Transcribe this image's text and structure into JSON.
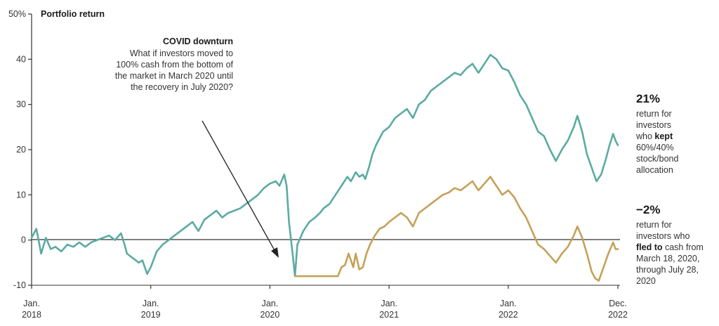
{
  "chart_data": {
    "type": "line",
    "title": "Portfolio return",
    "ylabel": "",
    "xlabel": "",
    "ylim": [
      -10,
      50
    ],
    "xlim": [
      2018.0,
      2022.92
    ],
    "yticks": [
      {
        "value": 50,
        "label": "50%"
      },
      {
        "value": 40,
        "label": "40"
      },
      {
        "value": 30,
        "label": "30"
      },
      {
        "value": 20,
        "label": "20"
      },
      {
        "value": 10,
        "label": "10"
      },
      {
        "value": 0,
        "label": "0"
      },
      {
        "value": -10,
        "label": "-10"
      }
    ],
    "xticks": [
      {
        "value": 2018.0,
        "line1": "Jan.",
        "line2": "2018"
      },
      {
        "value": 2019.0,
        "line1": "Jan.",
        "line2": "2019"
      },
      {
        "value": 2020.0,
        "line1": "Jan.",
        "line2": "2020"
      },
      {
        "value": 2021.0,
        "line1": "Jan.",
        "line2": "2021"
      },
      {
        "value": 2022.0,
        "line1": "Jan.",
        "line2": "2022"
      },
      {
        "value": 2022.92,
        "line1": "Dec.",
        "line2": "2022"
      }
    ],
    "grid": false,
    "series": [
      {
        "name": "kept 60%/40% stock/bond allocation",
        "color": "#5aaba3",
        "points": [
          [
            2018.0,
            0.5
          ],
          [
            2018.04,
            2.5
          ],
          [
            2018.08,
            -3.0
          ],
          [
            2018.12,
            0.5
          ],
          [
            2018.16,
            -2.0
          ],
          [
            2018.2,
            -1.5
          ],
          [
            2018.25,
            -2.5
          ],
          [
            2018.3,
            -1.0
          ],
          [
            2018.35,
            -1.5
          ],
          [
            2018.4,
            -0.5
          ],
          [
            2018.45,
            -1.5
          ],
          [
            2018.5,
            -0.5
          ],
          [
            2018.55,
            0.0
          ],
          [
            2018.6,
            0.5
          ],
          [
            2018.65,
            1.0
          ],
          [
            2018.7,
            0.0
          ],
          [
            2018.75,
            1.5
          ],
          [
            2018.78,
            -1.0
          ],
          [
            2018.8,
            -3.0
          ],
          [
            2018.85,
            -4.0
          ],
          [
            2018.9,
            -5.0
          ],
          [
            2018.93,
            -4.5
          ],
          [
            2018.97,
            -7.5
          ],
          [
            2019.0,
            -6.0
          ],
          [
            2019.05,
            -2.5
          ],
          [
            2019.1,
            -1.0
          ],
          [
            2019.15,
            0.0
          ],
          [
            2019.2,
            1.0
          ],
          [
            2019.25,
            2.0
          ],
          [
            2019.3,
            3.0
          ],
          [
            2019.35,
            4.0
          ],
          [
            2019.4,
            2.0
          ],
          [
            2019.45,
            4.5
          ],
          [
            2019.5,
            5.5
          ],
          [
            2019.55,
            6.5
          ],
          [
            2019.6,
            5.0
          ],
          [
            2019.65,
            6.0
          ],
          [
            2019.7,
            6.5
          ],
          [
            2019.75,
            7.0
          ],
          [
            2019.8,
            8.0
          ],
          [
            2019.85,
            9.0
          ],
          [
            2019.9,
            10.0
          ],
          [
            2019.95,
            11.5
          ],
          [
            2020.0,
            12.5
          ],
          [
            2020.05,
            13.0
          ],
          [
            2020.08,
            12.0
          ],
          [
            2020.12,
            14.5
          ],
          [
            2020.14,
            12.0
          ],
          [
            2020.16,
            4.0
          ],
          [
            2020.19,
            -3.0
          ],
          [
            2020.21,
            -8.0
          ],
          [
            2020.23,
            -1.0
          ],
          [
            2020.28,
            2.0
          ],
          [
            2020.33,
            4.0
          ],
          [
            2020.38,
            5.0
          ],
          [
            2020.42,
            6.0
          ],
          [
            2020.45,
            7.0
          ],
          [
            2020.5,
            8.0
          ],
          [
            2020.55,
            10.0
          ],
          [
            2020.6,
            12.0
          ],
          [
            2020.65,
            14.0
          ],
          [
            2020.68,
            13.0
          ],
          [
            2020.72,
            15.0
          ],
          [
            2020.75,
            14.0
          ],
          [
            2020.78,
            14.5
          ],
          [
            2020.8,
            13.5
          ],
          [
            2020.83,
            16.0
          ],
          [
            2020.86,
            19.0
          ],
          [
            2020.89,
            21.0
          ],
          [
            2020.92,
            22.5
          ],
          [
            2020.95,
            24.0
          ],
          [
            2021.0,
            25.0
          ],
          [
            2021.05,
            27.0
          ],
          [
            2021.1,
            28.0
          ],
          [
            2021.15,
            29.0
          ],
          [
            2021.2,
            27.0
          ],
          [
            2021.25,
            30.0
          ],
          [
            2021.3,
            31.0
          ],
          [
            2021.35,
            33.0
          ],
          [
            2021.4,
            34.0
          ],
          [
            2021.45,
            35.0
          ],
          [
            2021.5,
            36.0
          ],
          [
            2021.55,
            37.0
          ],
          [
            2021.6,
            36.5
          ],
          [
            2021.65,
            38.0
          ],
          [
            2021.7,
            39.0
          ],
          [
            2021.75,
            37.0
          ],
          [
            2021.8,
            39.0
          ],
          [
            2021.85,
            41.0
          ],
          [
            2021.9,
            40.0
          ],
          [
            2021.95,
            38.0
          ],
          [
            2022.0,
            37.5
          ],
          [
            2022.05,
            35.0
          ],
          [
            2022.1,
            32.0
          ],
          [
            2022.15,
            30.0
          ],
          [
            2022.2,
            27.0
          ],
          [
            2022.25,
            24.0
          ],
          [
            2022.3,
            23.0
          ],
          [
            2022.35,
            20.0
          ],
          [
            2022.4,
            17.5
          ],
          [
            2022.45,
            20.0
          ],
          [
            2022.5,
            22.0
          ],
          [
            2022.55,
            25.0
          ],
          [
            2022.58,
            27.5
          ],
          [
            2022.62,
            24.0
          ],
          [
            2022.66,
            19.0
          ],
          [
            2022.7,
            16.0
          ],
          [
            2022.74,
            13.0
          ],
          [
            2022.78,
            14.5
          ],
          [
            2022.82,
            18.0
          ],
          [
            2022.85,
            21.0
          ],
          [
            2022.88,
            23.5
          ],
          [
            2022.9,
            22.0
          ],
          [
            2022.92,
            21.0
          ]
        ]
      },
      {
        "name": "fled to cash from March 18, 2020, through July 28, 2020",
        "color": "#c4a157",
        "points": [
          [
            2020.21,
            -8.0
          ],
          [
            2020.3,
            -8.0
          ],
          [
            2020.4,
            -8.0
          ],
          [
            2020.5,
            -8.0
          ],
          [
            2020.57,
            -8.0
          ],
          [
            2020.6,
            -6.0
          ],
          [
            2020.63,
            -5.5
          ],
          [
            2020.66,
            -3.0
          ],
          [
            2020.7,
            -6.0
          ],
          [
            2020.72,
            -3.0
          ],
          [
            2020.75,
            -6.5
          ],
          [
            2020.78,
            -6.0
          ],
          [
            2020.81,
            -3.0
          ],
          [
            2020.84,
            -1.0
          ],
          [
            2020.88,
            1.0
          ],
          [
            2020.92,
            2.5
          ],
          [
            2020.96,
            3.0
          ],
          [
            2021.0,
            4.0
          ],
          [
            2021.05,
            5.0
          ],
          [
            2021.1,
            6.0
          ],
          [
            2021.15,
            5.0
          ],
          [
            2021.2,
            3.0
          ],
          [
            2021.25,
            6.0
          ],
          [
            2021.3,
            7.0
          ],
          [
            2021.35,
            8.0
          ],
          [
            2021.4,
            9.0
          ],
          [
            2021.45,
            10.0
          ],
          [
            2021.5,
            10.5
          ],
          [
            2021.55,
            11.5
          ],
          [
            2021.6,
            11.0
          ],
          [
            2021.65,
            12.0
          ],
          [
            2021.7,
            13.0
          ],
          [
            2021.75,
            11.0
          ],
          [
            2021.8,
            12.5
          ],
          [
            2021.85,
            14.0
          ],
          [
            2021.9,
            12.0
          ],
          [
            2021.95,
            10.0
          ],
          [
            2022.0,
            11.0
          ],
          [
            2022.05,
            9.5
          ],
          [
            2022.1,
            7.0
          ],
          [
            2022.15,
            5.0
          ],
          [
            2022.2,
            2.0
          ],
          [
            2022.25,
            -1.0
          ],
          [
            2022.3,
            -2.0
          ],
          [
            2022.35,
            -3.5
          ],
          [
            2022.4,
            -5.0
          ],
          [
            2022.45,
            -3.0
          ],
          [
            2022.5,
            -1.5
          ],
          [
            2022.55,
            1.0
          ],
          [
            2022.58,
            3.0
          ],
          [
            2022.62,
            0.5
          ],
          [
            2022.66,
            -3.0
          ],
          [
            2022.7,
            -7.0
          ],
          [
            2022.73,
            -8.5
          ],
          [
            2022.76,
            -9.0
          ],
          [
            2022.8,
            -6.0
          ],
          [
            2022.84,
            -3.0
          ],
          [
            2022.88,
            -0.5
          ],
          [
            2022.9,
            -2.0
          ],
          [
            2022.92,
            -2.0
          ]
        ]
      }
    ],
    "annotations": {
      "covid_title": "COVID downturn",
      "covid_lines": [
        "What if investors moved to",
        "100% cash from the bottom of",
        "the market in March 2020 until",
        "the recovery in July  2020?"
      ],
      "kept_value": "21%",
      "kept_lines": [
        "return for",
        "investors",
        "who "
      ],
      "kept_bold": "kept",
      "kept_tail": [
        "60%/40%",
        "stock/bond",
        "allocation"
      ],
      "fled_value": "−2%",
      "fled_lines": [
        "return for",
        "investors who"
      ],
      "fled_bold": "fled to",
      "fled_bold_tail": " cash from",
      "fled_tail": [
        "March 18, 2020,",
        "through July 28,",
        "2020"
      ]
    }
  }
}
